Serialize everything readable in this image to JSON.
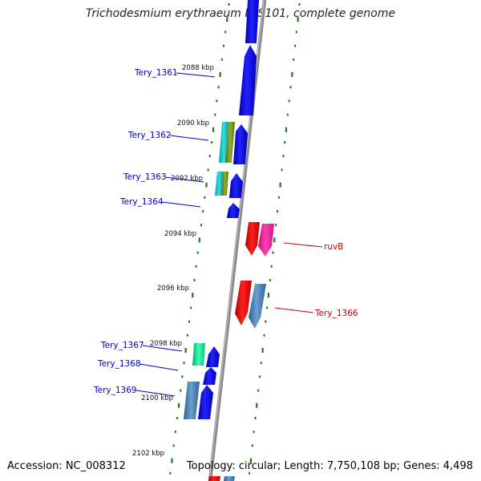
{
  "header": {
    "title": "Trichodesmium erythraeum IMS101, complete genome"
  },
  "footer": {
    "accession": "Accession: NC_008312",
    "summary": "Topology: circular; Length: 7,750,108 bp; Genes: 4,498"
  },
  "colors": {
    "forward_label": "#0000cc",
    "reverse_label": "#cc0000",
    "tick": "#1a7a1a",
    "backbone": "#808080"
  },
  "kbp_ticks": [
    "2088 kbp",
    "2090 kbp",
    "2092 kbp",
    "2094 kbp",
    "2096 kbp",
    "2098 kbp",
    "2100 kbp",
    "2102 kbp"
  ],
  "forward_genes": [
    "Tery_1361",
    "Tery_1362",
    "Tery_1363",
    "Tery_1364",
    "Tery_1367",
    "Tery_1368",
    "Tery_1369"
  ],
  "reverse_genes": [
    "ruvB",
    "Tery_1366"
  ]
}
